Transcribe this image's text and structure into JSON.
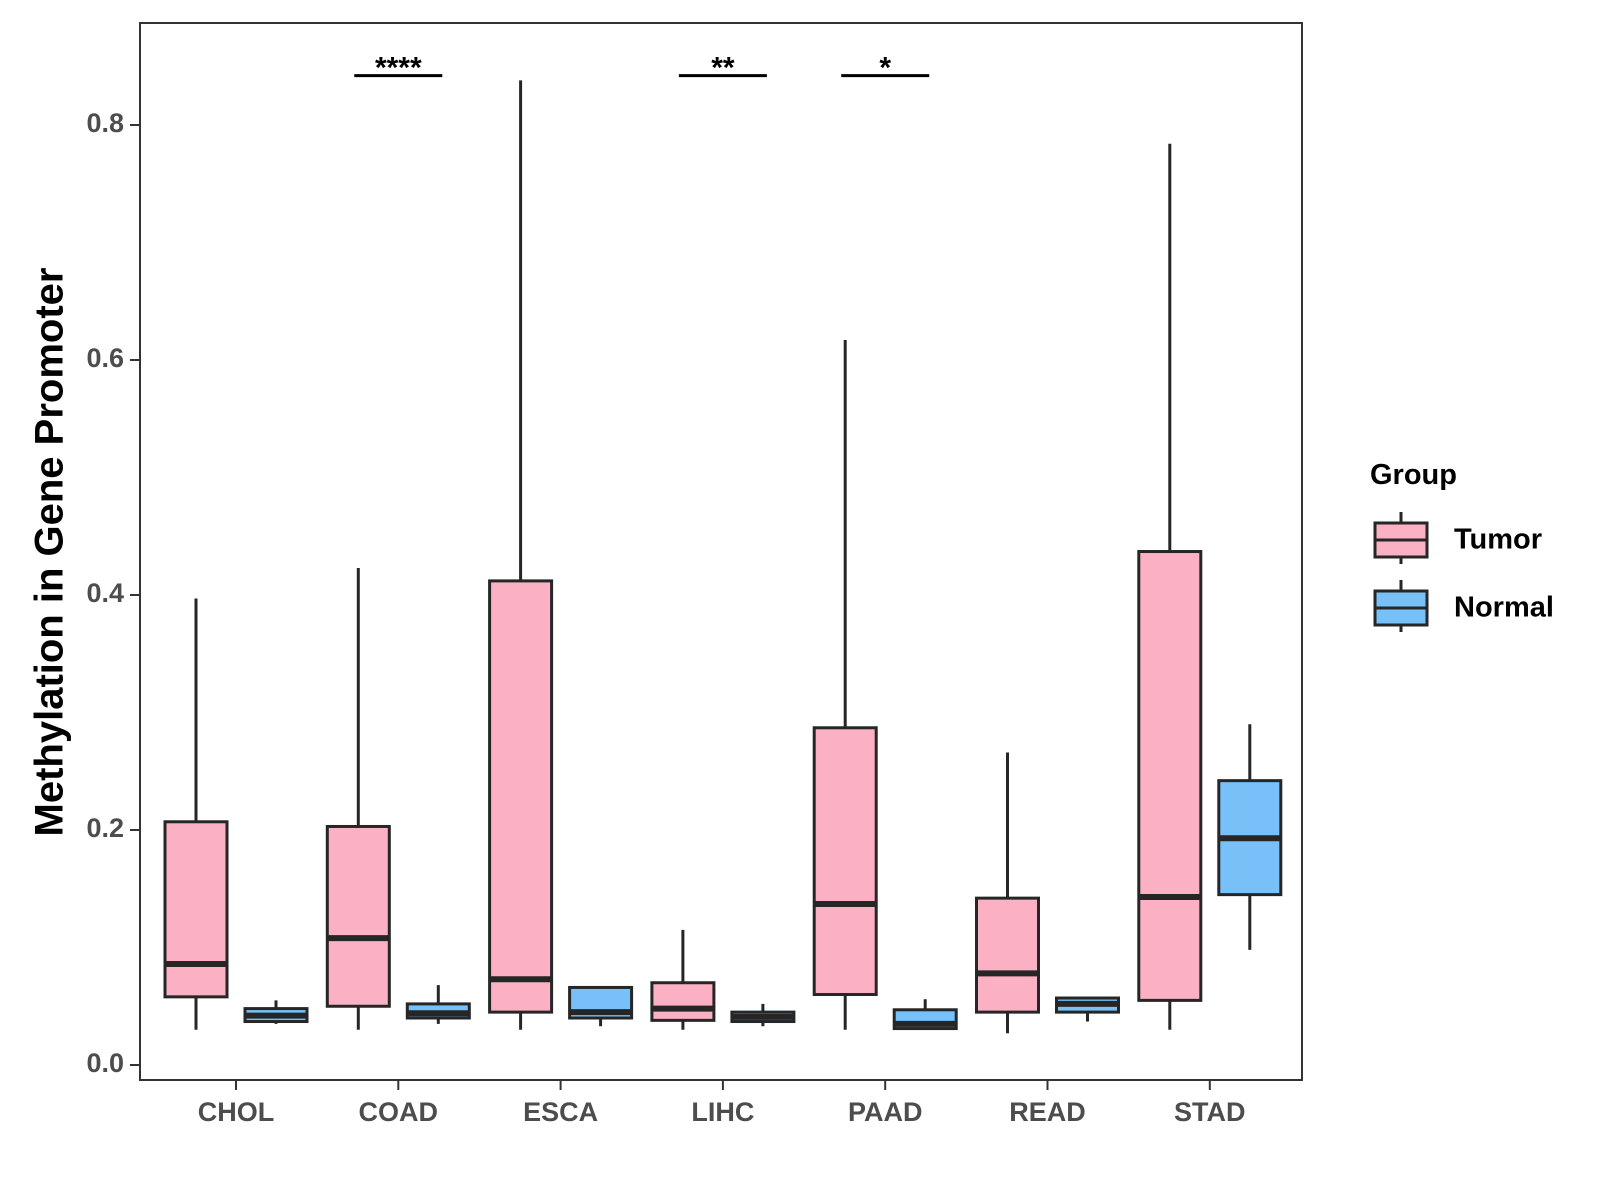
{
  "chart_data": {
    "type": "box",
    "title": "",
    "xlabel": "",
    "ylabel": "Methylation in Gene Promoter",
    "ylim": [
      -0.015,
      0.88
    ],
    "yticks": [
      0.0,
      0.2,
      0.4,
      0.6,
      0.8
    ],
    "ytick_labels": [
      "0.0",
      "0.2",
      "0.4",
      "0.6",
      "0.8"
    ],
    "categories": [
      "CHOL",
      "COAD",
      "ESCA",
      "LIHC",
      "PAAD",
      "READ",
      "STAD"
    ],
    "legend": {
      "title": "Group",
      "position": "right",
      "entries": [
        {
          "name": "Tumor",
          "color": "#fbb1c3"
        },
        {
          "name": "Normal",
          "color": "#77c1f8"
        }
      ]
    },
    "series": [
      {
        "name": "Tumor",
        "color": "#fbb1c3",
        "boxes": [
          {
            "category": "CHOL",
            "min": 0.03,
            "q1": 0.058,
            "median": 0.086,
            "q3": 0.207,
            "max": 0.397
          },
          {
            "category": "COAD",
            "min": 0.03,
            "q1": 0.05,
            "median": 0.108,
            "q3": 0.203,
            "max": 0.423
          },
          {
            "category": "ESCA",
            "min": 0.03,
            "q1": 0.045,
            "median": 0.073,
            "q3": 0.412,
            "max": 0.838
          },
          {
            "category": "LIHC",
            "min": 0.03,
            "q1": 0.038,
            "median": 0.048,
            "q3": 0.07,
            "max": 0.115
          },
          {
            "category": "PAAD",
            "min": 0.03,
            "q1": 0.06,
            "median": 0.137,
            "q3": 0.287,
            "max": 0.617
          },
          {
            "category": "READ",
            "min": 0.027,
            "q1": 0.045,
            "median": 0.078,
            "q3": 0.142,
            "max": 0.266
          },
          {
            "category": "STAD",
            "min": 0.03,
            "q1": 0.055,
            "median": 0.143,
            "q3": 0.437,
            "max": 0.784
          }
        ]
      },
      {
        "name": "Normal",
        "color": "#77c1f8",
        "boxes": [
          {
            "category": "CHOL",
            "min": 0.035,
            "q1": 0.037,
            "median": 0.042,
            "q3": 0.048,
            "max": 0.055
          },
          {
            "category": "COAD",
            "min": 0.035,
            "q1": 0.04,
            "median": 0.044,
            "q3": 0.052,
            "max": 0.068
          },
          {
            "category": "ESCA",
            "min": 0.033,
            "q1": 0.04,
            "median": 0.045,
            "q3": 0.066,
            "max": 0.066
          },
          {
            "category": "LIHC",
            "min": 0.033,
            "q1": 0.037,
            "median": 0.041,
            "q3": 0.045,
            "max": 0.052
          },
          {
            "category": "PAAD",
            "min": 0.03,
            "q1": 0.031,
            "median": 0.035,
            "q3": 0.047,
            "max": 0.056
          },
          {
            "category": "READ",
            "min": 0.037,
            "q1": 0.045,
            "median": 0.052,
            "q3": 0.057,
            "max": 0.057
          },
          {
            "category": "STAD",
            "min": 0.098,
            "q1": 0.145,
            "median": 0.193,
            "q3": 0.242,
            "max": 0.29
          }
        ]
      }
    ],
    "annotations": [
      {
        "category": "COAD",
        "label": "****",
        "y": 0.842
      },
      {
        "category": "LIHC",
        "label": "**",
        "y": 0.842
      },
      {
        "category": "PAAD",
        "label": "*",
        "y": 0.842
      }
    ]
  }
}
